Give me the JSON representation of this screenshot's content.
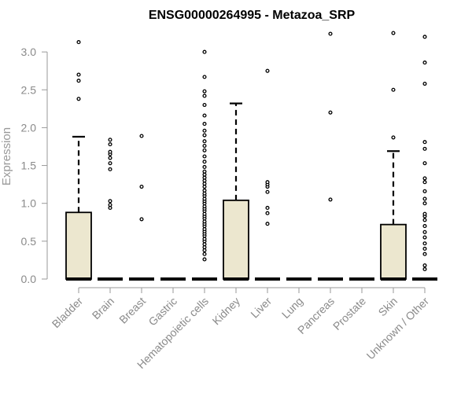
{
  "chart_data": {
    "type": "boxplot",
    "title": "ENSG00000264995 - Metazoa_SRP",
    "xlabel": "",
    "ylabel": "Expression",
    "ylim": [
      0,
      3.3
    ],
    "yticks": [
      "0.0",
      "0.5",
      "1.0",
      "1.5",
      "2.0",
      "2.5",
      "3.0"
    ],
    "grid": false,
    "colors": {
      "box_fill": "#ece7cf",
      "box_stroke": "#000000",
      "axis": "#999999"
    },
    "categories": [
      "Bladder",
      "Brain",
      "Breast",
      "Gastric",
      "Hematopoietic cells",
      "Kidney",
      "Liver",
      "Lung",
      "Pancreas",
      "Prostate",
      "Skin",
      "Unknown / Other"
    ],
    "boxes": [
      {
        "q1": 0,
        "median": 0,
        "q3": 0.88,
        "whisker_low": 0,
        "whisker_high": 1.88,
        "outliers": [
          2.38,
          2.62,
          2.7,
          3.13
        ]
      },
      {
        "q1": 0,
        "median": 0,
        "q3": 0,
        "whisker_low": 0,
        "whisker_high": 0,
        "outliers": [
          0.94,
          0.98,
          1.03,
          1.45,
          1.53,
          1.6,
          1.65,
          1.68,
          1.78,
          1.84
        ]
      },
      {
        "q1": 0,
        "median": 0,
        "q3": 0,
        "whisker_low": 0,
        "whisker_high": 0,
        "outliers": [
          0.79,
          1.22,
          1.89
        ]
      },
      {
        "q1": 0,
        "median": 0,
        "q3": 0,
        "whisker_low": 0,
        "whisker_high": 0,
        "outliers": []
      },
      {
        "q1": 0,
        "median": 0,
        "q3": 0,
        "whisker_low": 0,
        "whisker_high": 0,
        "outliers": [
          0.26,
          0.33,
          0.38,
          0.42,
          0.46,
          0.5,
          0.53,
          0.57,
          0.6,
          0.63,
          0.66,
          0.7,
          0.73,
          0.76,
          0.8,
          0.83,
          0.86,
          0.9,
          0.93,
          0.96,
          1.0,
          1.03,
          1.06,
          1.1,
          1.13,
          1.17,
          1.22,
          1.26,
          1.3,
          1.34,
          1.38,
          1.42,
          1.48,
          1.55,
          1.62,
          1.7,
          1.76,
          1.82,
          1.9,
          1.96,
          2.05,
          2.16,
          2.3,
          2.42,
          2.48,
          2.67,
          3.0
        ]
      },
      {
        "q1": 0,
        "median": 0,
        "q3": 1.04,
        "whisker_low": 0,
        "whisker_high": 2.32,
        "outliers": []
      },
      {
        "q1": 0,
        "median": 0,
        "q3": 0,
        "whisker_low": 0,
        "whisker_high": 0,
        "outliers": [
          0.73,
          0.87,
          0.94,
          1.15,
          1.22,
          1.25,
          1.28,
          2.75
        ]
      },
      {
        "q1": 0,
        "median": 0,
        "q3": 0,
        "whisker_low": 0,
        "whisker_high": 0,
        "outliers": []
      },
      {
        "q1": 0,
        "median": 0,
        "q3": 0,
        "whisker_low": 0,
        "whisker_high": 0,
        "outliers": [
          1.05,
          2.2,
          3.24
        ]
      },
      {
        "q1": 0,
        "median": 0,
        "q3": 0,
        "whisker_low": 0,
        "whisker_high": 0,
        "outliers": []
      },
      {
        "q1": 0,
        "median": 0,
        "q3": 0.72,
        "whisker_low": 0,
        "whisker_high": 1.69,
        "outliers": [
          1.87,
          2.5,
          3.25
        ]
      },
      {
        "q1": 0,
        "median": 0,
        "q3": 0,
        "whisker_low": 0,
        "whisker_high": 0,
        "outliers": [
          0.13,
          0.18,
          0.33,
          0.4,
          0.47,
          0.55,
          0.62,
          0.7,
          0.78,
          0.83,
          0.86,
          1.0,
          1.06,
          1.16,
          1.28,
          1.33,
          1.53,
          1.72,
          1.81,
          2.58,
          2.86,
          3.2
        ]
      }
    ]
  }
}
